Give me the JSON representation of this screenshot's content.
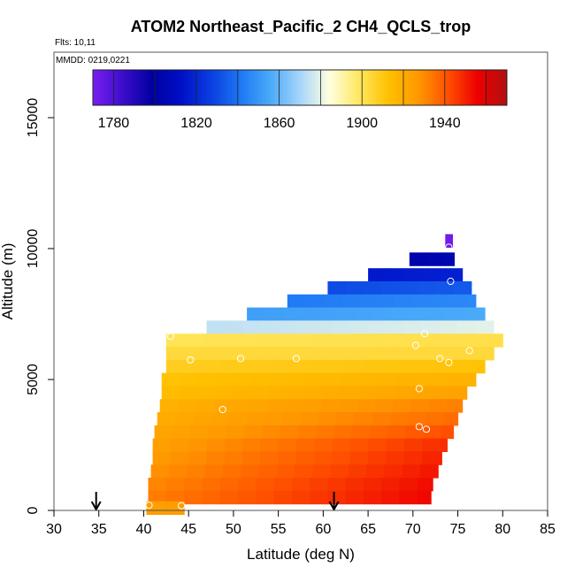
{
  "chart_data": {
    "type": "heatmap",
    "title": "ATOM2 Northeast_Pacific_2 CH4_QCLS_trop",
    "flights_label": "Flts: 10,11",
    "date_label": "MMDD: 0219,0221",
    "xlabel": "Latitude (deg N)",
    "ylabel": "Altitude (m)",
    "xlim": [
      30,
      85
    ],
    "ylim": [
      0,
      17500
    ],
    "xticks": [
      "30",
      "35",
      "40",
      "45",
      "50",
      "55",
      "60",
      "65",
      "70",
      "75",
      "80",
      "85"
    ],
    "yticks": [
      "0",
      "5000",
      "10000",
      "15000"
    ],
    "colorbar": {
      "min": 1770,
      "max": 1970,
      "ticks": [
        "1780",
        "1820",
        "1860",
        "1900",
        "1940"
      ],
      "colors": [
        "#7a1ff0",
        "#3c0dcc",
        "#0000a0",
        "#0010c8",
        "#0a3fe0",
        "#1e78f5",
        "#4aaaf8",
        "#a6d4fb",
        "#ffffe0",
        "#ffe860",
        "#ffc000",
        "#ff9800",
        "#ff5000",
        "#ee0000",
        "#b01010"
      ]
    },
    "arrows_lat": [
      34.7,
      61.2
    ],
    "rows": [
      {
        "alt": 10300,
        "lat_min": 73.6,
        "lat_max": 74.4,
        "ch4_w": 1772,
        "ch4_e": 1772
      },
      {
        "alt": 9600,
        "lat_min": 69.6,
        "lat_max": 74.6,
        "ch4_w": 1802,
        "ch4_e": 1805
      },
      {
        "alt": 9000,
        "lat_min": 65.0,
        "lat_max": 75.5,
        "ch4_w": 1815,
        "ch4_e": 1818
      },
      {
        "alt": 8500,
        "lat_min": 60.5,
        "lat_max": 76.5,
        "ch4_w": 1830,
        "ch4_e": 1834
      },
      {
        "alt": 8000,
        "lat_min": 56.0,
        "lat_max": 77.0,
        "ch4_w": 1842,
        "ch4_e": 1846
      },
      {
        "alt": 7500,
        "lat_min": 51.5,
        "lat_max": 78.0,
        "ch4_w": 1852,
        "ch4_e": 1856
      },
      {
        "alt": 7000,
        "lat_min": 47.0,
        "lat_max": 79.0,
        "ch4_w": 1874,
        "ch4_e": 1880
      },
      {
        "alt": 6500,
        "lat_min": 42.5,
        "lat_max": 80.0,
        "ch4_w": 1900,
        "ch4_e": 1902
      },
      {
        "alt": 6000,
        "lat_min": 42.5,
        "lat_max": 79.0,
        "ch4_w": 1904,
        "ch4_e": 1904
      },
      {
        "alt": 5500,
        "lat_min": 42.5,
        "lat_max": 78.0,
        "ch4_w": 1908,
        "ch4_e": 1912
      },
      {
        "alt": 5000,
        "lat_min": 42.0,
        "lat_max": 77.0,
        "ch4_w": 1912,
        "ch4_e": 1918
      },
      {
        "alt": 4500,
        "lat_min": 42.0,
        "lat_max": 76.0,
        "ch4_w": 1914,
        "ch4_e": 1924
      },
      {
        "alt": 4000,
        "lat_min": 41.8,
        "lat_max": 75.5,
        "ch4_w": 1918,
        "ch4_e": 1932
      },
      {
        "alt": 3500,
        "lat_min": 41.5,
        "lat_max": 75.0,
        "ch4_w": 1920,
        "ch4_e": 1936
      },
      {
        "alt": 3000,
        "lat_min": 41.2,
        "lat_max": 74.5,
        "ch4_w": 1922,
        "ch4_e": 1942
      },
      {
        "alt": 2500,
        "lat_min": 41.0,
        "lat_max": 73.8,
        "ch4_w": 1924,
        "ch4_e": 1948
      },
      {
        "alt": 2000,
        "lat_min": 41.0,
        "lat_max": 73.2,
        "ch4_w": 1926,
        "ch4_e": 1950
      },
      {
        "alt": 1500,
        "lat_min": 40.8,
        "lat_max": 72.8,
        "ch4_w": 1928,
        "ch4_e": 1952
      },
      {
        "alt": 1000,
        "lat_min": 40.5,
        "lat_max": 72.2,
        "ch4_w": 1930,
        "ch4_e": 1954
      },
      {
        "alt": 500,
        "lat_min": 40.5,
        "lat_max": 72.0,
        "ch4_w": 1932,
        "ch4_e": 1955
      },
      {
        "alt": 100,
        "lat_min": 40.3,
        "lat_max": 44.5,
        "ch4_w": 1924,
        "ch4_e": 1926
      }
    ],
    "points": [
      {
        "lat": 74.0,
        "alt": 10050
      },
      {
        "lat": 74.2,
        "alt": 8750
      },
      {
        "lat": 43.0,
        "alt": 6650
      },
      {
        "lat": 71.3,
        "alt": 6750
      },
      {
        "lat": 70.3,
        "alt": 6300
      },
      {
        "lat": 76.3,
        "alt": 6100
      },
      {
        "lat": 45.2,
        "alt": 5750
      },
      {
        "lat": 50.8,
        "alt": 5800
      },
      {
        "lat": 57.0,
        "alt": 5800
      },
      {
        "lat": 73.0,
        "alt": 5800
      },
      {
        "lat": 74.0,
        "alt": 5650
      },
      {
        "lat": 70.7,
        "alt": 4650
      },
      {
        "lat": 48.8,
        "alt": 3850
      },
      {
        "lat": 70.7,
        "alt": 3200
      },
      {
        "lat": 71.5,
        "alt": 3100
      },
      {
        "lat": 40.6,
        "alt": 200
      },
      {
        "lat": 44.2,
        "alt": 180
      }
    ]
  }
}
